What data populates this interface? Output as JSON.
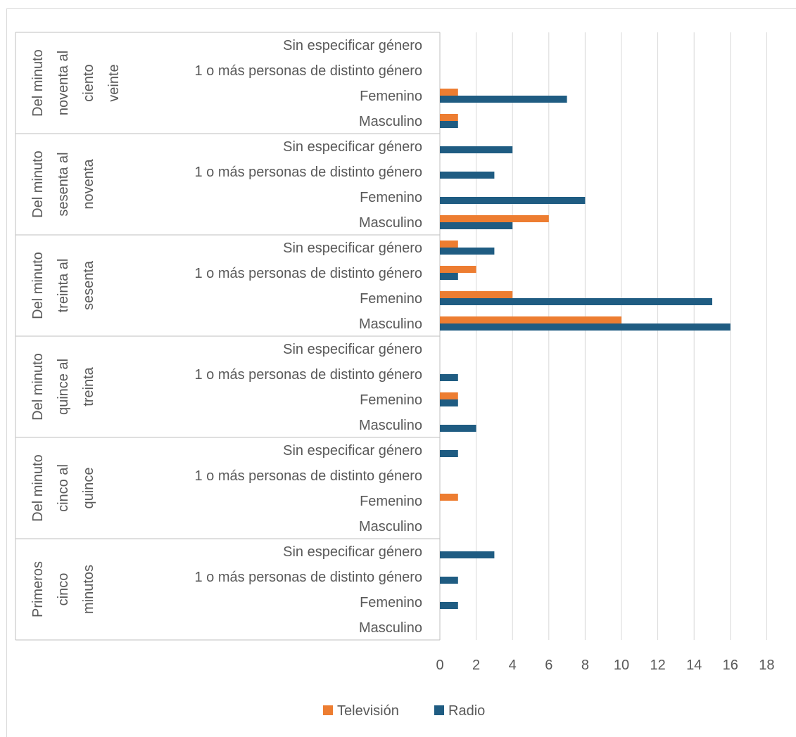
{
  "chart_data": {
    "type": "bar",
    "orientation": "horizontal",
    "grid": true,
    "legend_position": "bottom",
    "xlim": [
      0,
      18
    ],
    "x_ticks": [
      "0",
      "2",
      "4",
      "6",
      "8",
      "10",
      "12",
      "14",
      "16",
      "18"
    ],
    "groups": [
      {
        "label": "Del minuto noventa al ciento veinte",
        "lines": [
          "Del minuto",
          "noventa al",
          "ciento",
          "veinte"
        ]
      },
      {
        "label": "Del minuto sesenta al noventa",
        "lines": [
          "Del minuto",
          "sesenta al",
          "noventa"
        ]
      },
      {
        "label": "Del minuto treinta al sesenta",
        "lines": [
          "Del minuto",
          "treinta al",
          "sesenta"
        ]
      },
      {
        "label": "Del minuto quince al treinta",
        "lines": [
          "Del minuto",
          "quince al",
          "treinta"
        ]
      },
      {
        "label": "Del minuto cinco al quince",
        "lines": [
          "Del minuto",
          "cinco al",
          "quince"
        ]
      },
      {
        "label": "Primeros cinco minutos",
        "lines": [
          "Primeros",
          "cinco",
          "minutos"
        ]
      }
    ],
    "categories": [
      "Sin especificar género",
      "1 o más personas de distinto género",
      "Femenino",
      "Masculino"
    ],
    "series": [
      {
        "name": "Televisión",
        "color": "#ED7D31",
        "values": [
          [
            0,
            0,
            1,
            1
          ],
          [
            0,
            0,
            0,
            6
          ],
          [
            1,
            2,
            4,
            10
          ],
          [
            0,
            0,
            1,
            0
          ],
          [
            0,
            0,
            1,
            0
          ],
          [
            0,
            0,
            0,
            0
          ]
        ]
      },
      {
        "name": "Radio",
        "color": "#1F5C82",
        "values": [
          [
            0,
            0,
            7,
            1
          ],
          [
            4,
            3,
            8,
            4
          ],
          [
            3,
            1,
            15,
            16
          ],
          [
            0,
            1,
            1,
            2
          ],
          [
            1,
            0,
            0,
            0
          ],
          [
            3,
            1,
            1,
            0
          ]
        ]
      }
    ]
  }
}
